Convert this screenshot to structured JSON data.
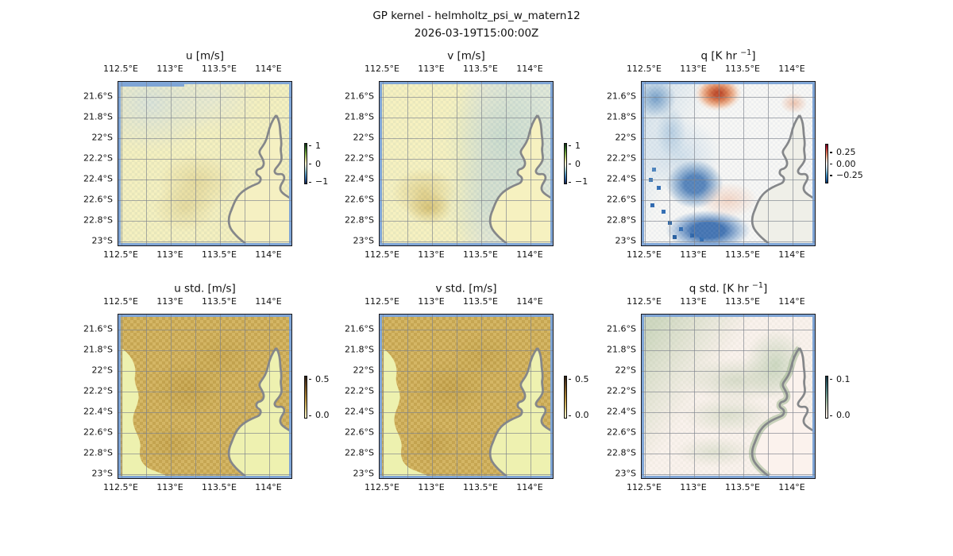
{
  "figure": {
    "title": "GP kernel - helmholtz_psi_w_matern12",
    "subtitle": "2026-03-19T15:00:00Z",
    "background": "#ffffff"
  },
  "axes": {
    "lon_ticks": [
      "112.5°E",
      "113°E",
      "113.5°E",
      "114°E"
    ],
    "lat_ticks": [
      "21.6°S",
      "21.8°S",
      "22°S",
      "22.2°S",
      "22.4°S",
      "22.6°S",
      "22.8°S",
      "23°S"
    ]
  },
  "colors": {
    "ocean": "#7fa5d6",
    "coastline": "#85878a",
    "gridline": "#9097a0",
    "text": "#111111"
  },
  "panels": [
    {
      "id": "u",
      "title": "u [m/s]",
      "title_sup": "",
      "title_end": "",
      "colorbar_ticks": [
        "1",
        "0",
        "−1"
      ]
    },
    {
      "id": "v",
      "title": "v [m/s]",
      "title_sup": "",
      "title_end": "",
      "colorbar_ticks": [
        "1",
        "0",
        "−1"
      ]
    },
    {
      "id": "q",
      "title": "q [K hr ",
      "title_sup": "−1",
      "title_end": "]",
      "colorbar_ticks": [
        "0.25",
        "0.00",
        "−0.25"
      ]
    },
    {
      "id": "u_std",
      "title": "u std. [m/s]",
      "title_sup": "",
      "title_end": "",
      "colorbar_ticks": [
        "0.5",
        "0.0"
      ]
    },
    {
      "id": "v_std",
      "title": "v std. [m/s]",
      "title_sup": "",
      "title_end": "",
      "colorbar_ticks": [
        "0.5",
        "0.0"
      ]
    },
    {
      "id": "q_std",
      "title": "q std. [K hr ",
      "title_sup": "−1",
      "title_end": "]",
      "colorbar_ticks": [
        "0.1",
        "0.0"
      ]
    }
  ],
  "chart_data": [
    {
      "type": "heatmap",
      "panel": "u",
      "title": "u [m/s]",
      "units": "m/s",
      "lon_range": [
        112.45,
        114.25
      ],
      "lat_range": [
        -23.05,
        -21.45
      ],
      "lon_ticks": [
        112.5,
        113.0,
        113.5,
        114.0
      ],
      "lat_ticks": [
        -21.6,
        -21.8,
        -22.0,
        -22.2,
        -22.4,
        -22.6,
        -22.8,
        -23.0
      ],
      "colorbar": {
        "ticks": [
          1,
          0,
          -1
        ],
        "range": [
          -1.2,
          1.2
        ],
        "colormap": "diverging dark-blue → pale-yellow → dark-green (cmocean delta-like)"
      },
      "grid_note": "approximate 8x8 downsample, rows N→S (21.5→23.0°S), cols W→E (112.5→114.2°E)",
      "values": [
        [
          -0.05,
          -0.05,
          0.0,
          0.05,
          0.05,
          0.0,
          0.05,
          0.0
        ],
        [
          -0.05,
          0.0,
          0.05,
          0.05,
          0.0,
          0.05,
          0.05,
          0.05
        ],
        [
          0.0,
          0.05,
          0.05,
          0.1,
          0.05,
          0.05,
          0.1,
          0.05
        ],
        [
          0.05,
          0.05,
          0.1,
          0.1,
          0.05,
          0.05,
          0.1,
          0.1
        ],
        [
          0.05,
          0.1,
          0.15,
          0.2,
          0.1,
          0.05,
          0.1,
          0.05
        ],
        [
          0.05,
          0.1,
          0.2,
          0.15,
          0.1,
          0.05,
          0.05,
          0.05
        ],
        [
          0.05,
          0.1,
          0.15,
          0.1,
          0.1,
          0.05,
          0.05,
          0.05
        ],
        [
          0.05,
          0.05,
          0.1,
          0.1,
          0.05,
          0.05,
          0.05,
          0.05
        ]
      ]
    },
    {
      "type": "heatmap",
      "panel": "v",
      "title": "v [m/s]",
      "units": "m/s",
      "lon_range": [
        112.45,
        114.25
      ],
      "lat_range": [
        -23.05,
        -21.45
      ],
      "lon_ticks": [
        112.5,
        113.0,
        113.5,
        114.0
      ],
      "lat_ticks": [
        -21.6,
        -21.8,
        -22.0,
        -22.2,
        -22.4,
        -22.6,
        -22.8,
        -23.0
      ],
      "colorbar": {
        "ticks": [
          1,
          0,
          -1
        ],
        "range": [
          -1.2,
          1.2
        ],
        "colormap": "diverging dark-blue → pale-yellow → dark-green (cmocean delta-like)"
      },
      "grid_note": "approximate 8x8 downsample, rows N→S, cols W→E; positive (tan) west, negative (teal) east",
      "values": [
        [
          0.1,
          0.1,
          0.05,
          0.0,
          -0.05,
          -0.1,
          -0.1,
          -0.05
        ],
        [
          0.1,
          0.15,
          0.1,
          0.05,
          -0.05,
          -0.1,
          -0.15,
          -0.05
        ],
        [
          0.1,
          0.15,
          0.1,
          0.0,
          -0.05,
          -0.1,
          -0.1,
          0.05
        ],
        [
          0.15,
          0.2,
          0.1,
          0.0,
          -0.1,
          -0.15,
          -0.05,
          0.05
        ],
        [
          0.2,
          0.3,
          0.15,
          0.0,
          -0.1,
          -0.15,
          -0.05,
          0.05
        ],
        [
          0.25,
          0.4,
          0.2,
          -0.05,
          -0.15,
          -0.1,
          0.05,
          0.05
        ],
        [
          0.2,
          0.35,
          0.15,
          -0.05,
          -0.15,
          -0.05,
          0.05,
          0.05
        ],
        [
          0.1,
          0.2,
          0.1,
          -0.05,
          -0.1,
          -0.05,
          0.05,
          0.05
        ]
      ]
    },
    {
      "type": "heatmap",
      "panel": "q",
      "title": "q [K hr −1]",
      "units": "K/hr",
      "lon_range": [
        112.45,
        114.25
      ],
      "lat_range": [
        -23.05,
        -21.45
      ],
      "lon_ticks": [
        112.5,
        113.0,
        113.5,
        114.0
      ],
      "lat_ticks": [
        -21.6,
        -21.8,
        -22.0,
        -22.2,
        -22.4,
        -22.6,
        -22.8,
        -23.0
      ],
      "colorbar": {
        "ticks": [
          0.25,
          0.0,
          -0.25
        ],
        "range": [
          -0.35,
          0.35
        ],
        "colormap": "RdBu diverging (red positive, blue negative)"
      },
      "grid_note": "approximate 8x8 downsample; warm blob near 113.3°E/21.55°S, cold band SW; land masked white",
      "values": [
        [
          -0.15,
          -0.1,
          0.15,
          0.35,
          0.1,
          0.0,
          0.05,
          0.0
        ],
        [
          -0.2,
          -0.15,
          0.05,
          0.2,
          0.05,
          0.0,
          0.0,
          0.0
        ],
        [
          -0.1,
          -0.15,
          -0.05,
          0.05,
          0.0,
          0.0,
          0.0,
          0.0
        ],
        [
          0.0,
          -0.15,
          -0.1,
          -0.05,
          -0.05,
          0.0,
          0.0,
          0.0
        ],
        [
          -0.05,
          -0.1,
          -0.2,
          -0.1,
          -0.05,
          0.0,
          0.0,
          0.0
        ],
        [
          -0.1,
          -0.2,
          -0.3,
          -0.15,
          0.05,
          0.05,
          0.0,
          0.0
        ],
        [
          -0.05,
          -0.25,
          -0.35,
          -0.2,
          -0.05,
          0.0,
          0.0,
          0.0
        ],
        [
          -0.05,
          -0.15,
          -0.35,
          -0.25,
          -0.1,
          -0.05,
          0.0,
          0.0
        ]
      ]
    },
    {
      "type": "heatmap",
      "panel": "u_std",
      "title": "u std. [m/s]",
      "units": "m/s",
      "lon_range": [
        112.45,
        114.25
      ],
      "lat_range": [
        -23.05,
        -21.45
      ],
      "lon_ticks": [
        112.5,
        113.0,
        113.5,
        114.0
      ],
      "lat_ticks": [
        -21.6,
        -21.8,
        -22.0,
        -22.2,
        -22.4,
        -22.6,
        -22.8,
        -23.0
      ],
      "colorbar": {
        "ticks": [
          0.5,
          0.0
        ],
        "range": [
          0,
          0.55
        ],
        "colormap": "sequential pale-yellow → dark-brown (cmocean turbid-like)"
      },
      "grid_note": "approximate 8x8 downsample; high (tan) offshore, low (pale green) near coast and west edge",
      "values": [
        [
          0.45,
          0.45,
          0.45,
          0.45,
          0.45,
          0.45,
          0.45,
          0.3
        ],
        [
          0.3,
          0.45,
          0.45,
          0.45,
          0.45,
          0.45,
          0.4,
          0.2
        ],
        [
          0.2,
          0.4,
          0.45,
          0.45,
          0.45,
          0.45,
          0.3,
          0.2
        ],
        [
          0.2,
          0.35,
          0.45,
          0.45,
          0.45,
          0.4,
          0.2,
          0.2
        ],
        [
          0.25,
          0.4,
          0.45,
          0.45,
          0.45,
          0.35,
          0.2,
          0.2
        ],
        [
          0.2,
          0.35,
          0.45,
          0.45,
          0.45,
          0.3,
          0.2,
          0.2
        ],
        [
          0.2,
          0.3,
          0.45,
          0.45,
          0.45,
          0.3,
          0.2,
          0.2
        ],
        [
          0.2,
          0.35,
          0.45,
          0.45,
          0.4,
          0.35,
          0.2,
          0.2
        ]
      ]
    },
    {
      "type": "heatmap",
      "panel": "v_std",
      "title": "v std. [m/s]",
      "units": "m/s",
      "lon_range": [
        112.45,
        114.25
      ],
      "lat_range": [
        -23.05,
        -21.45
      ],
      "lon_ticks": [
        112.5,
        113.0,
        113.5,
        114.0
      ],
      "lat_ticks": [
        -21.6,
        -21.8,
        -22.0,
        -22.2,
        -22.4,
        -22.6,
        -22.8,
        -23.0
      ],
      "colorbar": {
        "ticks": [
          0.5,
          0.0
        ],
        "range": [
          0,
          0.55
        ],
        "colormap": "sequential pale-yellow → dark-brown (cmocean turbid-like)"
      },
      "grid_note": "approximate 8x8 downsample; pattern nearly identical to u std.",
      "values": [
        [
          0.45,
          0.45,
          0.45,
          0.45,
          0.45,
          0.45,
          0.45,
          0.3
        ],
        [
          0.3,
          0.45,
          0.45,
          0.45,
          0.45,
          0.45,
          0.4,
          0.2
        ],
        [
          0.2,
          0.4,
          0.45,
          0.45,
          0.45,
          0.45,
          0.3,
          0.2
        ],
        [
          0.2,
          0.35,
          0.45,
          0.45,
          0.45,
          0.4,
          0.2,
          0.2
        ],
        [
          0.25,
          0.4,
          0.45,
          0.45,
          0.45,
          0.35,
          0.2,
          0.2
        ],
        [
          0.2,
          0.35,
          0.45,
          0.45,
          0.45,
          0.3,
          0.2,
          0.2
        ],
        [
          0.2,
          0.3,
          0.45,
          0.45,
          0.45,
          0.3,
          0.2,
          0.2
        ],
        [
          0.2,
          0.35,
          0.45,
          0.45,
          0.4,
          0.35,
          0.2,
          0.2
        ]
      ]
    },
    {
      "type": "heatmap",
      "panel": "q_std",
      "title": "q std. [K hr −1]",
      "units": "K/hr",
      "lon_range": [
        112.45,
        114.25
      ],
      "lat_range": [
        -23.05,
        -21.45
      ],
      "lon_ticks": [
        112.5,
        113.0,
        113.5,
        114.0
      ],
      "lat_ticks": [
        -21.6,
        -21.8,
        -22.0,
        -22.2,
        -22.4,
        -22.6,
        -22.8,
        -23.0
      ],
      "colorbar": {
        "ticks": [
          0.1,
          0.0
        ],
        "range": [
          0,
          0.11
        ],
        "colormap": "sequential white-pink → dark-teal-green (cmocean rain-like)"
      },
      "grid_note": "approximate 8x8 downsample; faint green diagonal band NW→SE toward coast on pale pink field",
      "values": [
        [
          0.04,
          0.05,
          0.05,
          0.04,
          0.04,
          0.05,
          0.05,
          0.03
        ],
        [
          0.05,
          0.04,
          0.03,
          0.03,
          0.04,
          0.05,
          0.04,
          0.02
        ],
        [
          0.03,
          0.03,
          0.02,
          0.03,
          0.04,
          0.05,
          0.03,
          0.02
        ],
        [
          0.02,
          0.03,
          0.03,
          0.04,
          0.05,
          0.04,
          0.02,
          0.02
        ],
        [
          0.02,
          0.02,
          0.03,
          0.04,
          0.05,
          0.03,
          0.02,
          0.02
        ],
        [
          0.02,
          0.03,
          0.04,
          0.05,
          0.04,
          0.03,
          0.02,
          0.02
        ],
        [
          0.03,
          0.04,
          0.04,
          0.05,
          0.04,
          0.04,
          0.02,
          0.02
        ],
        [
          0.02,
          0.03,
          0.05,
          0.06,
          0.05,
          0.04,
          0.02,
          0.02
        ]
      ]
    }
  ]
}
